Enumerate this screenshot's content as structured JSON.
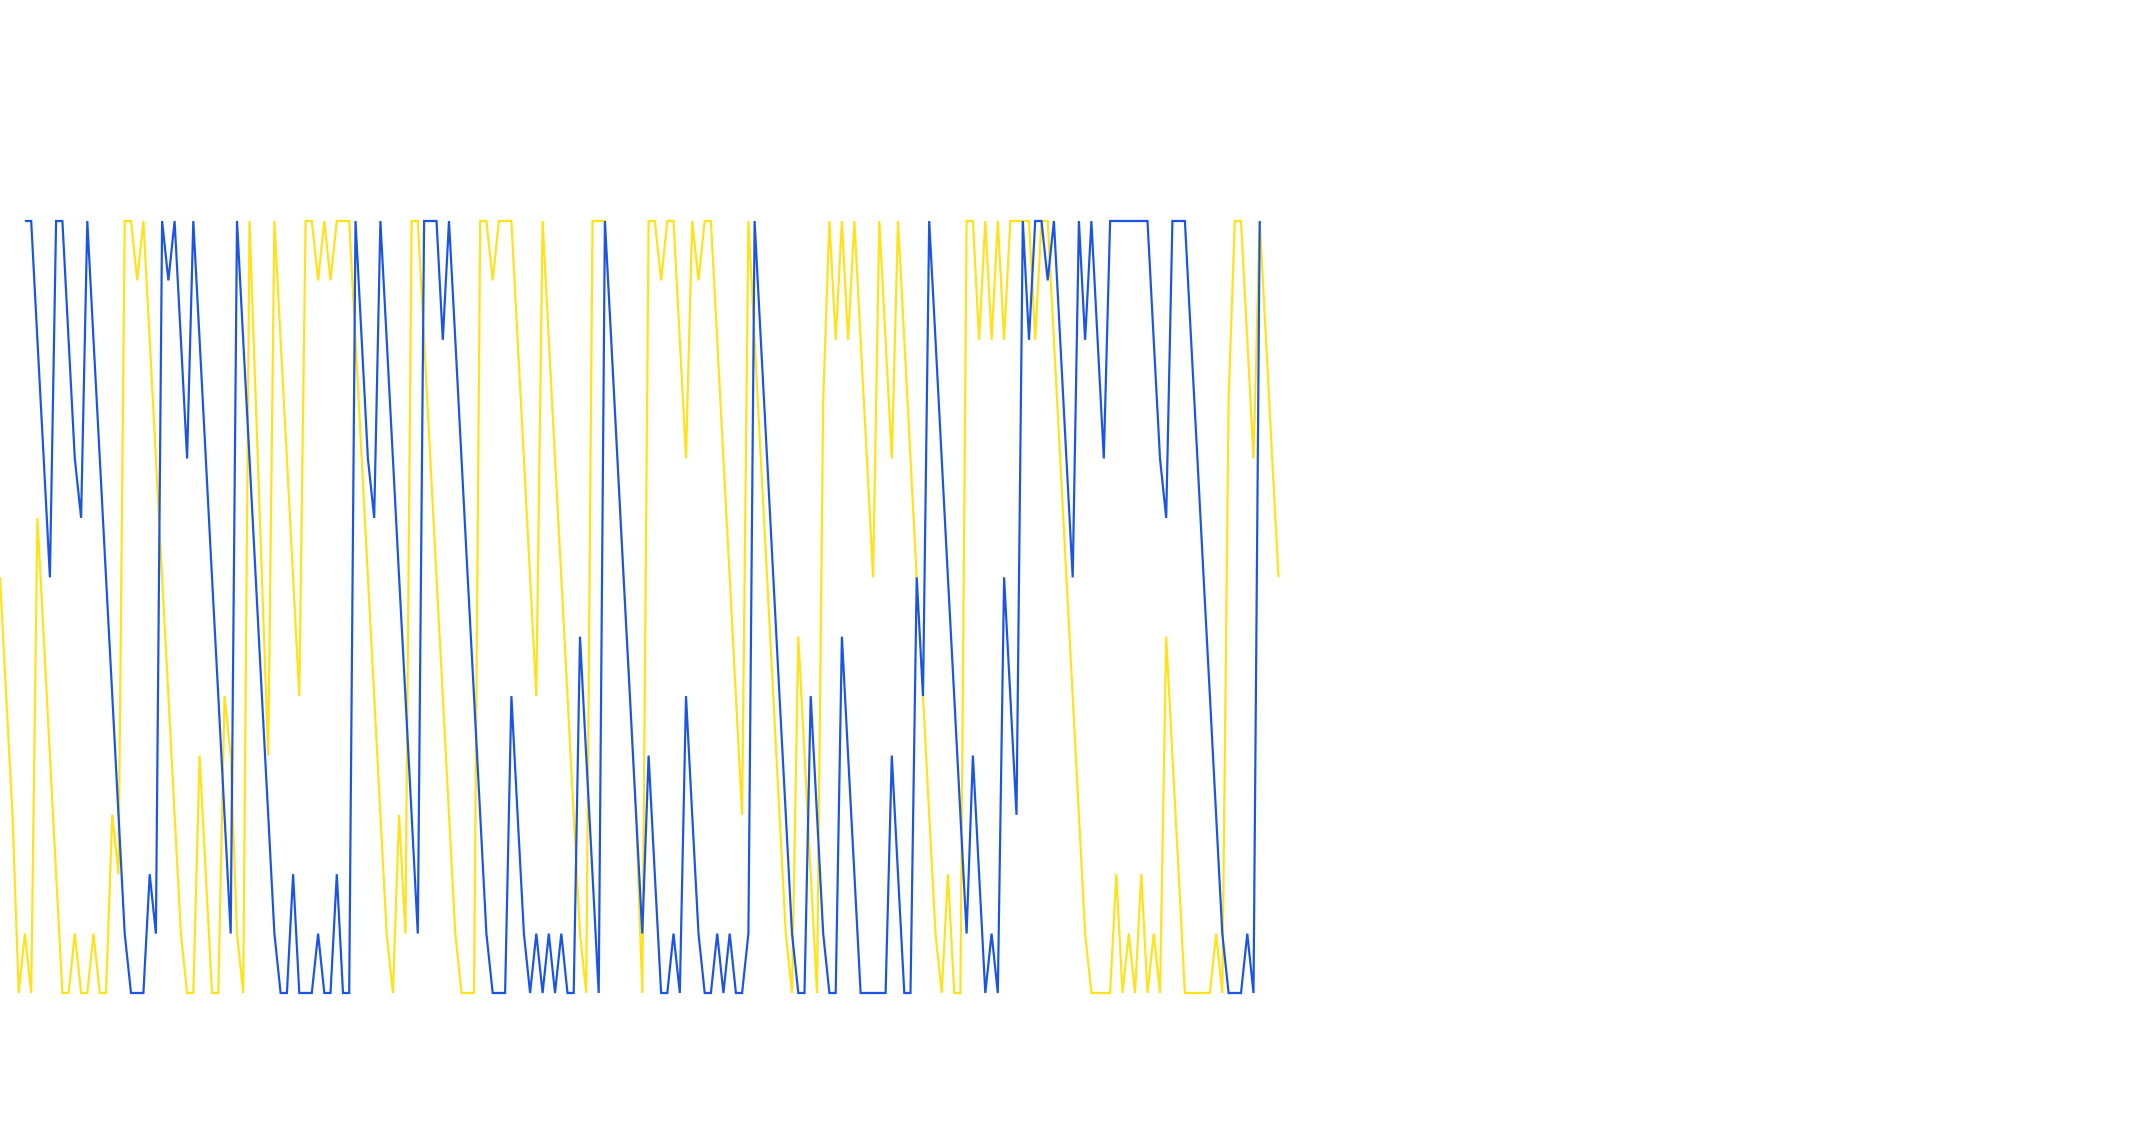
{
  "chart_data": {
    "type": "line",
    "title": "",
    "xlabel": "",
    "ylabel": "",
    "xlim": [
      0,
      330
    ],
    "ylim": [
      0,
      13
    ],
    "grid": false,
    "legend": "none",
    "series": [
      {
        "color": "#ffe21a",
        "values": [
          7,
          5,
          3,
          0,
          1,
          0,
          8,
          6,
          4,
          2,
          0,
          0,
          1,
          0,
          0,
          1,
          0,
          0,
          3,
          2,
          13,
          13,
          12,
          13,
          11,
          9,
          7,
          5,
          3,
          1,
          0,
          0,
          4,
          2,
          0,
          0,
          5,
          4,
          1,
          0,
          13,
          10,
          7,
          4,
          13,
          11,
          9,
          7,
          5,
          13,
          13,
          12,
          13,
          12,
          13,
          13,
          13,
          11,
          9,
          7,
          5,
          3,
          1,
          0,
          3,
          1,
          13,
          13,
          11,
          9,
          7,
          5,
          3,
          1,
          0,
          0,
          0,
          13,
          13,
          12,
          13,
          13,
          13,
          11,
          9,
          7,
          5,
          13,
          11,
          9,
          7,
          5,
          3,
          1,
          0,
          13,
          13,
          13,
          11,
          9,
          7,
          5,
          3,
          0,
          13,
          13,
          12,
          13,
          13,
          11,
          9,
          13,
          12,
          13,
          13,
          11,
          9,
          7,
          5,
          3,
          13,
          11,
          9,
          7,
          5,
          3,
          1,
          0,
          6,
          4,
          2,
          0,
          10,
          13,
          11,
          13,
          11,
          13,
          11,
          9,
          7,
          13,
          11,
          9,
          13,
          11,
          9,
          7,
          5,
          3,
          1,
          0,
          2,
          0,
          0,
          13,
          13,
          11,
          13,
          11,
          13,
          11,
          13,
          13,
          13,
          13,
          11,
          13,
          13,
          11,
          9,
          7,
          5,
          3,
          1,
          0,
          0,
          0,
          0,
          2,
          0,
          1,
          0,
          2,
          0,
          1,
          0,
          6,
          4,
          2,
          0,
          0,
          0,
          0,
          0,
          1,
          0,
          10,
          13,
          13,
          11,
          9,
          13,
          11,
          9,
          7
        ]
      },
      {
        "color": "#1a55e6",
        "values": [
          13,
          13,
          11,
          9,
          7,
          13,
          13,
          11,
          9,
          8,
          13,
          11,
          9,
          7,
          5,
          3,
          1,
          0,
          0,
          0,
          2,
          1,
          13,
          12,
          13,
          11,
          9,
          13,
          11,
          9,
          7,
          5,
          3,
          1,
          13,
          11,
          9,
          7,
          5,
          3,
          1,
          0,
          0,
          2,
          0,
          0,
          0,
          1,
          0,
          0,
          2,
          0,
          0,
          13,
          11,
          9,
          8,
          13,
          11,
          9,
          7,
          5,
          3,
          1,
          13,
          13,
          13,
          11,
          13,
          11,
          9,
          7,
          5,
          3,
          1,
          0,
          0,
          0,
          5,
          3,
          1,
          0,
          1,
          0,
          1,
          0,
          1,
          0,
          0,
          6,
          4,
          2,
          0,
          13,
          11,
          9,
          7,
          5,
          3,
          1,
          4,
          2,
          0,
          0,
          1,
          0,
          5,
          3,
          1,
          0,
          0,
          1,
          0,
          1,
          0,
          0,
          1,
          13,
          11,
          9,
          7,
          5,
          3,
          1,
          0,
          0,
          5,
          3,
          1,
          0,
          0,
          6,
          4,
          2,
          0,
          0,
          0,
          0,
          0,
          4,
          2,
          0,
          0,
          7,
          5,
          13,
          11,
          9,
          7,
          5,
          3,
          1,
          4,
          2,
          0,
          1,
          0,
          7,
          5,
          3,
          13,
          11,
          13,
          13,
          12,
          13,
          11,
          9,
          7,
          13,
          11,
          13,
          11,
          9,
          13,
          13,
          13,
          13,
          13,
          13,
          13,
          11,
          9,
          8,
          13,
          13,
          13,
          11,
          9,
          7,
          5,
          3,
          1,
          0,
          0,
          0,
          1,
          0,
          13
        ]
      }
    ]
  }
}
